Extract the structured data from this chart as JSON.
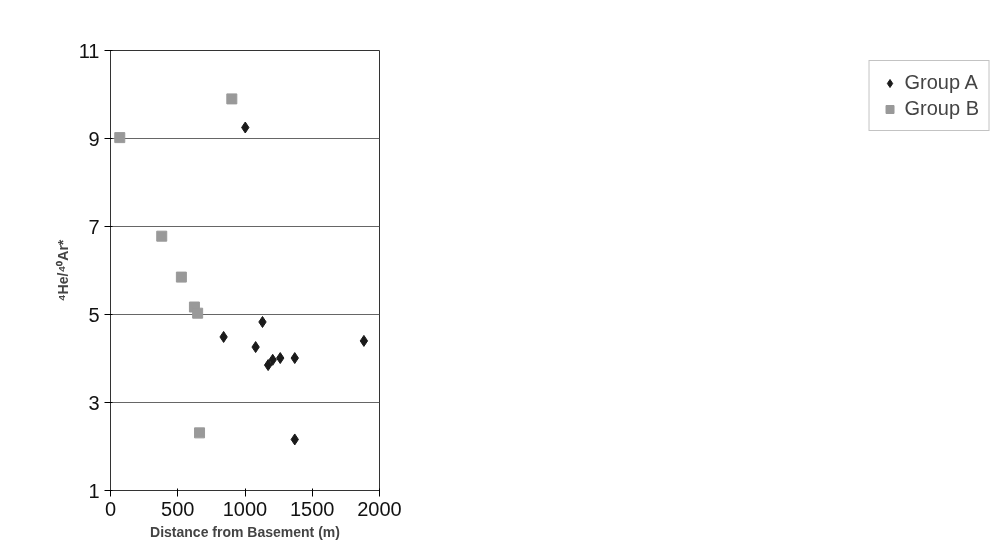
{
  "chart_data": {
    "type": "scatter",
    "xlabel": "Distance from Basement (m)",
    "ylabel": "⁴He/⁴⁰Ar*",
    "xlim": [
      0,
      2000
    ],
    "xticks": [
      0,
      500,
      1000,
      1500,
      2000
    ],
    "ylim": [
      1,
      11
    ],
    "yticks": [
      1,
      3,
      5,
      7,
      9,
      11
    ],
    "grid": "y",
    "legend": "right",
    "series": [
      {
        "name": "Group A",
        "color": "#1a1a1a",
        "marker": "diamond",
        "x": [
          841,
          1002,
          1079,
          1130,
          1172,
          1206,
          1262,
          1370,
          1370,
          1884
        ],
        "values": [
          4.49,
          9.25,
          4.26,
          4.83,
          3.85,
          3.97,
          4.01,
          4.01,
          2.16,
          4.4
        ]
      },
      {
        "name": "Group B",
        "color": "#999999",
        "marker": "square",
        "x": [
          69,
          381,
          527,
          624,
          648,
          662,
          902
        ],
        "values": [
          9.02,
          6.78,
          5.85,
          5.17,
          5.03,
          2.31,
          9.9
        ]
      }
    ]
  }
}
